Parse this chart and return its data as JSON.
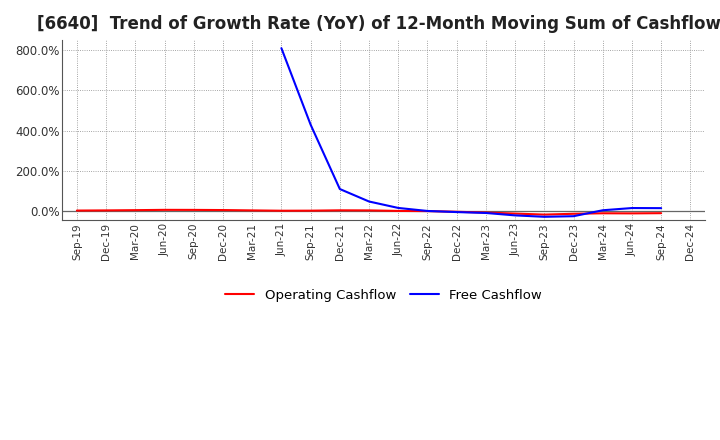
{
  "title": "[6640]  Trend of Growth Rate (YoY) of 12-Month Moving Sum of Cashflows",
  "title_fontsize": 12,
  "background_color": "#ffffff",
  "plot_bg_color": "#ffffff",
  "grid_color": "#888888",
  "x_labels": [
    "Sep-19",
    "Dec-19",
    "Mar-20",
    "Jun-20",
    "Sep-20",
    "Dec-20",
    "Mar-21",
    "Jun-21",
    "Sep-21",
    "Dec-21",
    "Mar-22",
    "Jun-22",
    "Sep-22",
    "Dec-22",
    "Mar-23",
    "Jun-23",
    "Sep-23",
    "Dec-23",
    "Mar-24",
    "Jun-24",
    "Sep-24",
    "Dec-24"
  ],
  "operating_cashflow": [
    0.03,
    0.038,
    0.05,
    0.065,
    0.063,
    0.055,
    0.038,
    0.022,
    0.025,
    0.042,
    0.038,
    0.012,
    0.003,
    -0.03,
    -0.07,
    -0.12,
    -0.17,
    -0.13,
    -0.105,
    -0.11,
    -0.1,
    null
  ],
  "free_cashflow": [
    null,
    null,
    null,
    null,
    null,
    null,
    null,
    8.1,
    4.3,
    1.1,
    0.48,
    0.16,
    0.01,
    -0.045,
    -0.09,
    -0.21,
    -0.28,
    -0.25,
    0.045,
    0.155,
    0.15,
    null
  ],
  "ylim": [
    -0.45,
    8.5
  ],
  "yticks": [
    0.0,
    2.0,
    4.0,
    6.0,
    8.0
  ],
  "ytick_labels": [
    "0.0%",
    "200.0%",
    "400.0%",
    "600.0%",
    "800.0%"
  ],
  "operating_color": "#ff0000",
  "free_color": "#0000ff",
  "zero_line_color": "#666666",
  "spine_color": "#333333"
}
